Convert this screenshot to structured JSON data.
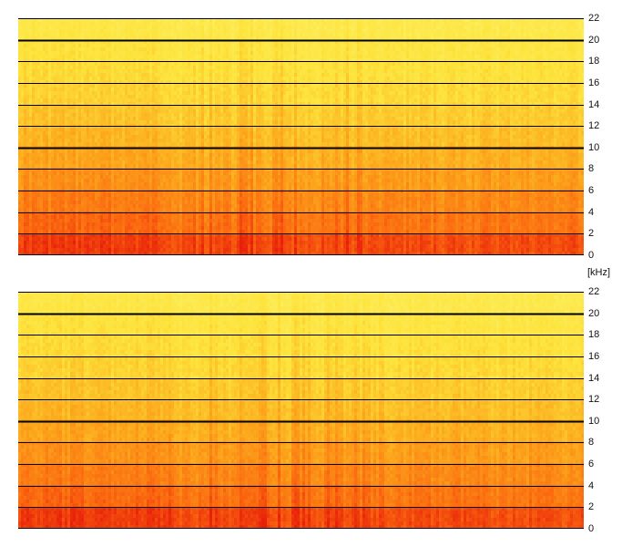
{
  "chart_data": [
    {
      "type": "heatmap",
      "ylim": [
        0,
        22
      ],
      "y_ticks": [
        0,
        2,
        4,
        6,
        8,
        10,
        12,
        14,
        16,
        18,
        20,
        22
      ],
      "bold_gridlines": [
        10,
        20
      ],
      "grid": true,
      "colormap": [
        "#e8200a",
        "#fb6a10",
        "#fca81c",
        "#fde23a",
        "#fdf36a"
      ],
      "band_intensity": [
        {
          "from": 0,
          "to": 2,
          "level": 0.15
        },
        {
          "from": 2,
          "to": 4,
          "level": 0.3
        },
        {
          "from": 4,
          "to": 6,
          "level": 0.38
        },
        {
          "from": 6,
          "to": 8,
          "level": 0.46
        },
        {
          "from": 8,
          "to": 10,
          "level": 0.54
        },
        {
          "from": 10,
          "to": 12,
          "level": 0.6
        },
        {
          "from": 12,
          "to": 14,
          "level": 0.66
        },
        {
          "from": 14,
          "to": 16,
          "level": 0.72
        },
        {
          "from": 16,
          "to": 18,
          "level": 0.76
        },
        {
          "from": 18,
          "to": 20,
          "level": 0.8
        },
        {
          "from": 20,
          "to": 22,
          "level": 0.85
        }
      ]
    },
    {
      "type": "heatmap",
      "ylim": [
        0,
        22
      ],
      "y_ticks": [
        0,
        2,
        4,
        6,
        8,
        10,
        12,
        14,
        16,
        18,
        20,
        22
      ],
      "bold_gridlines": [
        10,
        20
      ],
      "grid": true,
      "colormap": [
        "#e8200a",
        "#fb6a10",
        "#fca81c",
        "#fde23a",
        "#fdf36a"
      ],
      "band_intensity": [
        {
          "from": 0,
          "to": 2,
          "level": 0.15
        },
        {
          "from": 2,
          "to": 4,
          "level": 0.3
        },
        {
          "from": 4,
          "to": 6,
          "level": 0.38
        },
        {
          "from": 6,
          "to": 8,
          "level": 0.46
        },
        {
          "from": 8,
          "to": 10,
          "level": 0.54
        },
        {
          "from": 10,
          "to": 12,
          "level": 0.6
        },
        {
          "from": 12,
          "to": 14,
          "level": 0.66
        },
        {
          "from": 14,
          "to": 16,
          "level": 0.72
        },
        {
          "from": 16,
          "to": 18,
          "level": 0.76
        },
        {
          "from": 18,
          "to": 20,
          "level": 0.8
        },
        {
          "from": 20,
          "to": 22,
          "level": 0.85
        }
      ]
    }
  ],
  "shared_axis": {
    "unit_label": "[kHz]"
  }
}
